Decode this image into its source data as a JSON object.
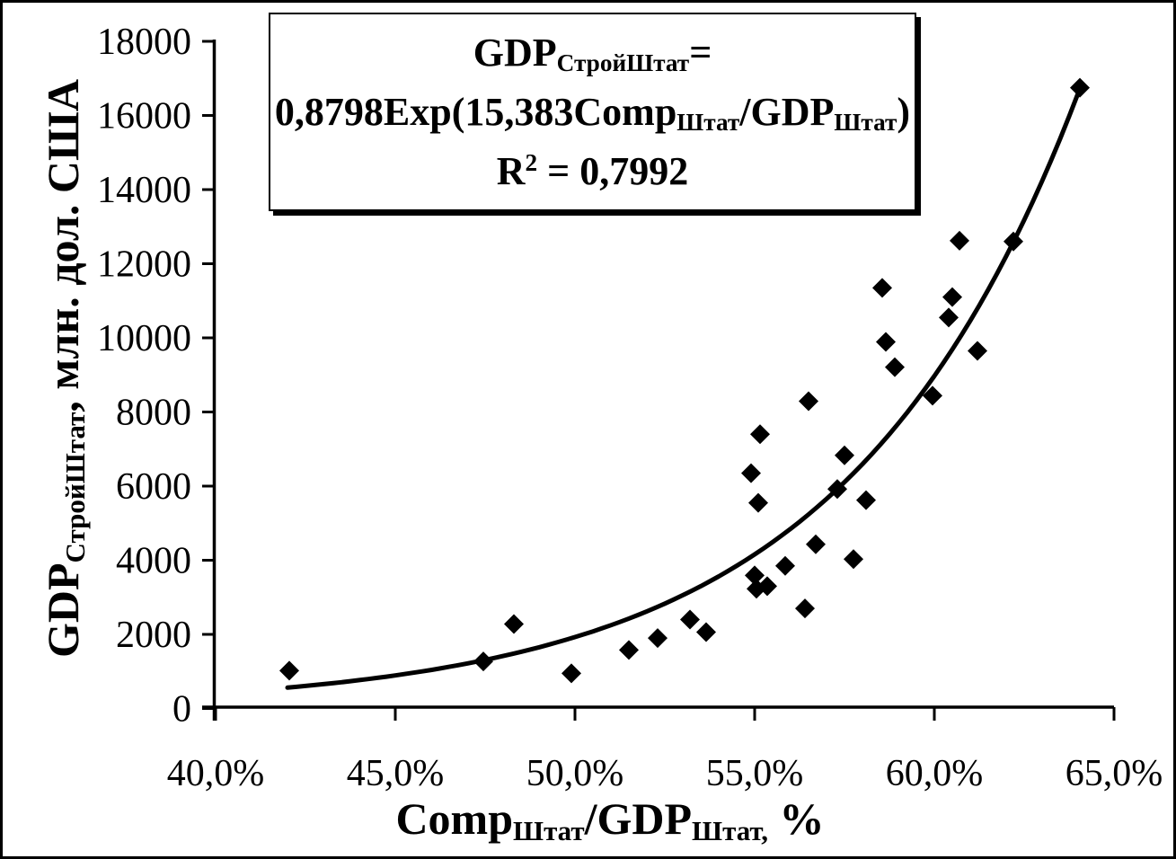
{
  "figure": {
    "background_color": "#ffffff",
    "ink_color": "#000000"
  },
  "chart_data": {
    "type": "scatter",
    "title": "",
    "legend": "none",
    "grid": "off",
    "marker": "black-diamond",
    "equation_box": {
      "line1": [
        {
          "t": "GDP"
        },
        {
          "t": "СтройШтат",
          "style": "sub"
        },
        {
          "t": "="
        }
      ],
      "line2": [
        {
          "t": "0,8798Exp(15,383Comp"
        },
        {
          "t": "Штат",
          "style": "sub"
        },
        {
          "t": "/GDP"
        },
        {
          "t": "Штат",
          "style": "sub"
        },
        {
          "t": ")"
        }
      ],
      "line3": [
        {
          "t": "R"
        },
        {
          "t": "2",
          "style": "sup"
        },
        {
          "t": " = 0,7992"
        }
      ]
    },
    "x_axis": {
      "label_segments": [
        {
          "t": "Comp"
        },
        {
          "t": "Штат",
          "style": "sub"
        },
        {
          "t": "/GDP"
        },
        {
          "t": "Штат,",
          "style": "sub"
        },
        {
          "t": " %"
        }
      ],
      "tick_labels": [
        "40,0%",
        "45,0%",
        "50,0%",
        "55,0%",
        "60,0%",
        "65,0%"
      ],
      "tick_values": [
        40,
        45,
        50,
        55,
        60,
        65
      ],
      "range": [
        40,
        65
      ]
    },
    "y_axis": {
      "label_segments": [
        {
          "t": "GDP"
        },
        {
          "t": "СтройШтат",
          "style": "sub"
        },
        {
          "t": ", млн. дол. США"
        }
      ],
      "tick_labels": [
        "0",
        "2000",
        "4000",
        "6000",
        "8000",
        "10000",
        "12000",
        "14000",
        "16000",
        "18000"
      ],
      "tick_values": [
        0,
        2000,
        4000,
        6000,
        8000,
        10000,
        12000,
        14000,
        16000,
        18000
      ],
      "range": [
        0,
        18000
      ]
    },
    "points_unit": "[Comp/GDP %, GDP construction, mln USD]",
    "points": [
      [
        42.05,
        1020
      ],
      [
        47.45,
        1270
      ],
      [
        48.3,
        2280
      ],
      [
        49.9,
        950
      ],
      [
        51.5,
        1580
      ],
      [
        52.3,
        1900
      ],
      [
        53.2,
        2400
      ],
      [
        53.65,
        2060
      ],
      [
        54.9,
        6350
      ],
      [
        55.0,
        3590
      ],
      [
        55.05,
        3230
      ],
      [
        55.1,
        5550
      ],
      [
        55.15,
        7400
      ],
      [
        55.35,
        3300
      ],
      [
        55.85,
        3850
      ],
      [
        56.4,
        2700
      ],
      [
        56.5,
        8290
      ],
      [
        56.7,
        4430
      ],
      [
        57.3,
        5920
      ],
      [
        57.5,
        6830
      ],
      [
        57.75,
        4030
      ],
      [
        58.1,
        5620
      ],
      [
        58.55,
        11350
      ],
      [
        58.65,
        9890
      ],
      [
        58.9,
        9210
      ],
      [
        59.95,
        8440
      ],
      [
        60.4,
        10550
      ],
      [
        60.5,
        11100
      ],
      [
        60.7,
        12620
      ],
      [
        61.2,
        9650
      ],
      [
        62.2,
        12600
      ],
      [
        64.05,
        16750
      ]
    ],
    "trendline": {
      "type": "exponential",
      "formula": "y = 0,8798·Exp(15,383·x)",
      "a": 0.8798,
      "k": 15.383,
      "x_start_pct": 42.0,
      "x_end_pct": 64.05,
      "r_squared": "0,7992"
    }
  }
}
